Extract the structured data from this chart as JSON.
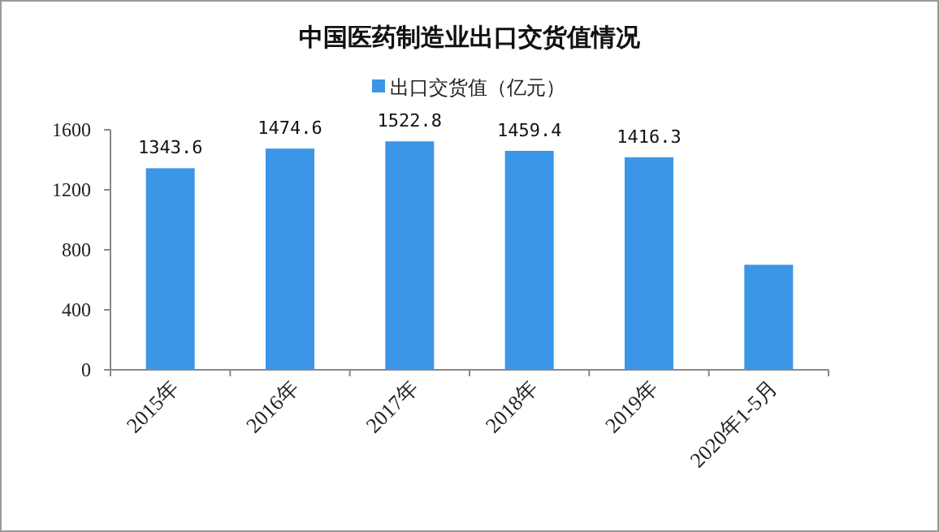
{
  "chart_data": {
    "type": "bar",
    "title": "中国医药制造业出口交货值情况",
    "categories": [
      "2015年",
      "2016年",
      "2017年",
      "2018年",
      "2019年",
      "2020年1-5月"
    ],
    "series": [
      {
        "name": "出口交货值（亿元）",
        "color": "#3b96e8",
        "values": [
          1343.6,
          1474.6,
          1522.8,
          1459.4,
          1416.3,
          700
        ],
        "value_labels": [
          "1343.6",
          "1474.6",
          "1522.8",
          "1459.4",
          "1416.3",
          null
        ]
      }
    ],
    "ylim": [
      0,
      1600
    ],
    "yticks": [
      0,
      400,
      800,
      1200,
      1600
    ],
    "legend": "top"
  }
}
